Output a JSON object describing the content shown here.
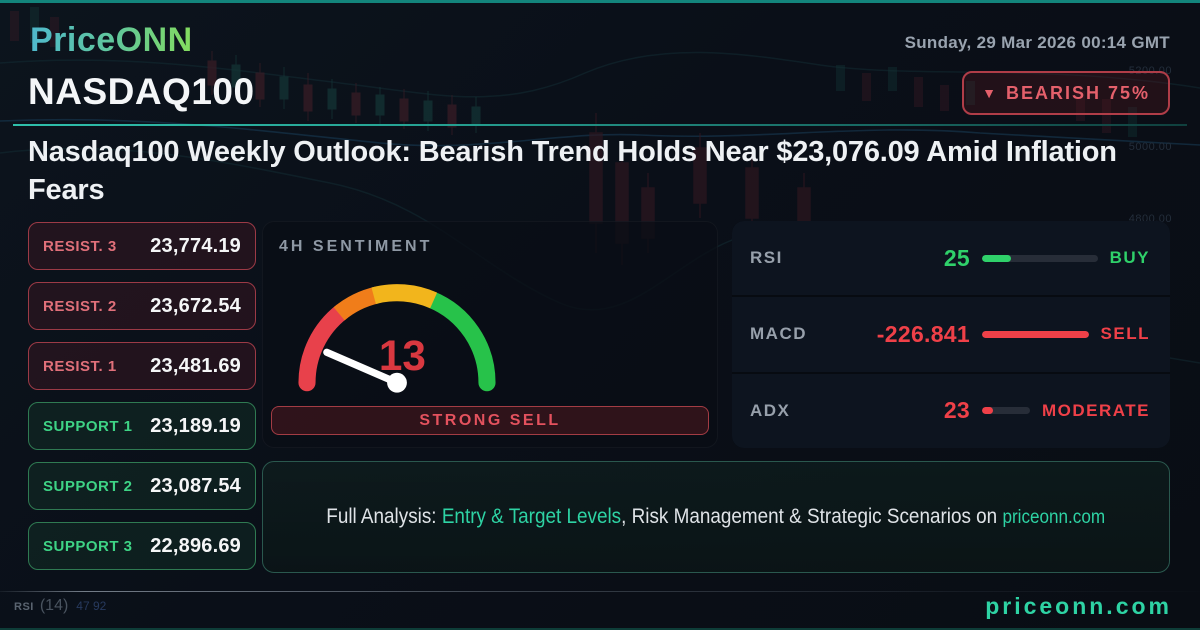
{
  "colors": {
    "accent_teal": "#2ed3a4",
    "bearish_red": "#e4606b",
    "bullish_green": "#2fd16a",
    "gauge_segments": [
      "#e8414b",
      "#f07d1a",
      "#f2b51c",
      "#27c24a"
    ]
  },
  "brand": {
    "logo": "PriceONN"
  },
  "header": {
    "date": "Sunday, 29 Mar 2026 00:14 GMT",
    "symbol": "NASDAQ100",
    "badge_icon": "▼",
    "badge_label": "BEARISH 75%"
  },
  "headline": "Nasdaq100 Weekly Outlook: Bearish Trend Holds Near $23,076.09 Amid Inflation Fears",
  "levels": [
    {
      "kind": "resistance",
      "label": "RESIST. 3",
      "value": "23,774.19"
    },
    {
      "kind": "resistance",
      "label": "RESIST. 2",
      "value": "23,672.54"
    },
    {
      "kind": "resistance",
      "label": "RESIST. 1",
      "value": "23,481.69"
    },
    {
      "kind": "support",
      "label": "SUPPORT 1",
      "value": "23,189.19"
    },
    {
      "kind": "support",
      "label": "SUPPORT 2",
      "value": "23,087.54"
    },
    {
      "kind": "support",
      "label": "SUPPORT 3",
      "value": "22,896.69"
    }
  ],
  "sentiment": {
    "title": "4H SENTIMENT",
    "value": 13,
    "max": 100,
    "signal": "STRONG SELL"
  },
  "indicators": [
    {
      "name": "RSI",
      "value": "25",
      "percent": 25,
      "signal": "BUY",
      "color": "#2fd16a"
    },
    {
      "name": "MACD",
      "value": "-226.841",
      "percent": 100,
      "signal": "SELL",
      "color": "#ef4048"
    },
    {
      "name": "ADX",
      "value": "23",
      "percent": 22,
      "signal": "MODERATE",
      "color": "#ef4048"
    }
  ],
  "cta": {
    "prefix": "Full Analysis: ",
    "highlight": "Entry & Target Levels",
    "middle": ", Risk Management & Strategic Scenarios on ",
    "site": "priceonn.com"
  },
  "footer": {
    "site": "priceonn.com"
  },
  "background": {
    "price_labels": [
      "5200.00",
      "5000.00",
      "4800.00"
    ],
    "indicator_label": "RSI",
    "indicator_param": "(14)",
    "indicator_values": "47 92"
  }
}
